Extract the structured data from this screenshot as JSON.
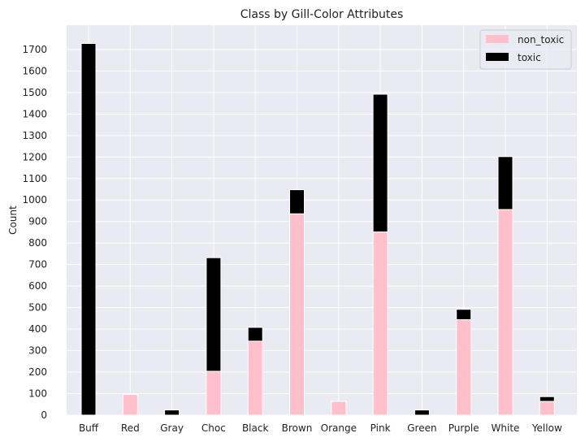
{
  "chart_data": {
    "type": "bar",
    "stacked": true,
    "title": "Class by Gill-Color Attributes",
    "xlabel": "",
    "ylabel": "Count",
    "categories": [
      "Buff",
      "Red",
      "Gray",
      "Choc",
      "Black",
      "Brown",
      "Orange",
      "Pink",
      "Green",
      "Purple",
      "White",
      "Yellow"
    ],
    "series": [
      {
        "name": "non_toxic",
        "color": "#ffc0cb",
        "values": [
          0,
          96,
          0,
          204,
          344,
          936,
          64,
          852,
          0,
          444,
          956,
          64
        ]
      },
      {
        "name": "toxic",
        "color": "#000000",
        "values": [
          1728,
          0,
          24,
          528,
          64,
          112,
          0,
          640,
          24,
          48,
          246,
          22
        ]
      }
    ],
    "ylim": [
      0,
      1700
    ],
    "yticks": [
      0,
      100,
      200,
      300,
      400,
      500,
      600,
      700,
      800,
      900,
      1000,
      1100,
      1200,
      1300,
      1400,
      1500,
      1600,
      1700
    ],
    "grid": true,
    "legend_position": "top-right",
    "background_color": "#eaeaf2",
    "grid_color": "#ffffff"
  }
}
